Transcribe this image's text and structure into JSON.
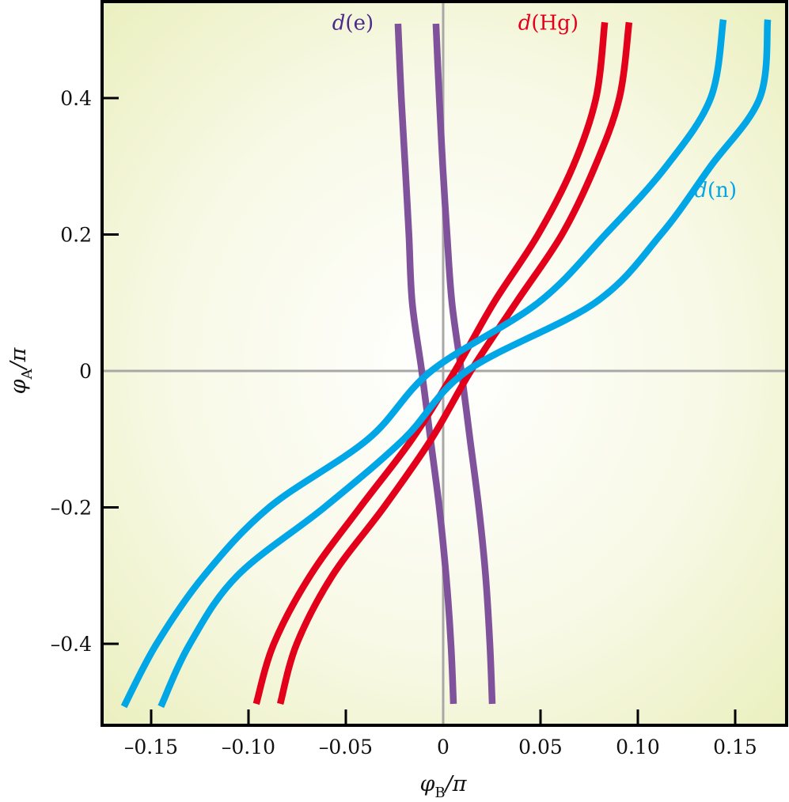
{
  "chart_data": {
    "type": "line",
    "title": "",
    "xlabel": "φ_B/π",
    "ylabel": "φ_A/π",
    "xlim": [
      -0.1715,
      0.1765
    ],
    "ylim": [
      -0.518,
      0.543
    ],
    "x_ticks": [
      -0.15,
      -0.1,
      -0.05,
      0,
      0.05,
      0.1,
      0.15
    ],
    "x_tick_labels": [
      "–0.15",
      "–0.10",
      "–0.05",
      "0",
      "0.05",
      "0.10",
      "0.15"
    ],
    "y_ticks": [
      -0.4,
      -0.2,
      0,
      0.2,
      0.4
    ],
    "y_tick_labels": [
      "–0.4",
      "–0.2",
      "0",
      "0.2",
      "0.4"
    ],
    "grid": false,
    "zero_lines": true,
    "legend": "inline labels",
    "series": [
      {
        "name": "d(e)",
        "label_name": "e",
        "color": "#7f529b",
        "branch": "left",
        "points": [
          [
            -0.0232,
            0.509
          ],
          [
            -0.0215,
            0.4
          ],
          [
            -0.0195,
            0.3
          ],
          [
            -0.0176,
            0.2
          ],
          [
            -0.0159,
            0.1
          ],
          [
            -0.011,
            0.0
          ],
          [
            -0.0065,
            -0.1
          ],
          [
            -0.002,
            -0.2
          ],
          [
            0.0015,
            -0.3
          ],
          [
            0.004,
            -0.4
          ],
          [
            0.0053,
            -0.488
          ]
        ]
      },
      {
        "name": "d(e)",
        "label_name": "e",
        "color": "#7f529b",
        "branch": "right",
        "points": [
          [
            -0.0037,
            0.509
          ],
          [
            -0.002,
            0.4
          ],
          [
            -0.0002,
            0.3
          ],
          [
            0.002,
            0.2
          ],
          [
            0.0045,
            0.1
          ],
          [
            0.0093,
            0.0
          ],
          [
            0.0138,
            -0.1
          ],
          [
            0.0183,
            -0.2
          ],
          [
            0.0218,
            -0.3
          ],
          [
            0.024,
            -0.4
          ],
          [
            0.0252,
            -0.488
          ]
        ]
      },
      {
        "name": "d(Hg)",
        "label_name": "Hg",
        "color": "#e2001a",
        "branch": "left",
        "points": [
          [
            0.083,
            0.511
          ],
          [
            0.0785,
            0.4
          ],
          [
            0.0667,
            0.3
          ],
          [
            0.0488,
            0.2
          ],
          [
            0.026,
            0.1
          ],
          [
            0.006,
            0.0
          ],
          [
            -0.016,
            -0.1
          ],
          [
            -0.0427,
            -0.2
          ],
          [
            -0.0683,
            -0.3
          ],
          [
            -0.087,
            -0.4
          ],
          [
            -0.096,
            -0.488
          ]
        ]
      },
      {
        "name": "d(Hg)",
        "label_name": "Hg",
        "color": "#e2001a",
        "branch": "right",
        "points": [
          [
            0.0955,
            0.511
          ],
          [
            0.0905,
            0.4
          ],
          [
            0.078,
            0.3
          ],
          [
            0.061,
            0.2
          ],
          [
            0.0374,
            0.1
          ],
          [
            0.0142,
            0.0
          ],
          [
            -0.0061,
            -0.1
          ],
          [
            -0.0305,
            -0.2
          ],
          [
            -0.0569,
            -0.3
          ],
          [
            -0.0752,
            -0.4
          ],
          [
            -0.0837,
            -0.488
          ]
        ]
      },
      {
        "name": "d(n)",
        "label_name": "n",
        "color": "#00a6e6",
        "branch": "left",
        "points": [
          [
            0.1439,
            0.515
          ],
          [
            0.1374,
            0.4
          ],
          [
            0.1146,
            0.3
          ],
          [
            0.0833,
            0.2
          ],
          [
            0.0488,
            0.1
          ],
          [
            -0.0061,
            0.0
          ],
          [
            -0.0386,
            -0.1
          ],
          [
            -0.0894,
            -0.2
          ],
          [
            -0.1228,
            -0.3
          ],
          [
            -0.1472,
            -0.4
          ],
          [
            -0.164,
            -0.492
          ]
        ]
      },
      {
        "name": "d(n)",
        "label_name": "n",
        "color": "#00a6e6",
        "branch": "right",
        "points": [
          [
            0.1667,
            0.515
          ],
          [
            0.1626,
            0.4
          ],
          [
            0.1374,
            0.3
          ],
          [
            0.1118,
            0.2
          ],
          [
            0.078,
            0.1
          ],
          [
            0.0122,
            0.0
          ],
          [
            -0.0203,
            -0.1
          ],
          [
            -0.061,
            -0.2
          ],
          [
            -0.1057,
            -0.3
          ],
          [
            -0.1301,
            -0.4
          ],
          [
            -0.145,
            -0.492
          ]
        ]
      }
    ],
    "annotations": [
      {
        "prefix": "d",
        "text": "(e)",
        "color": "#4b2a8c",
        "x": -0.057,
        "y": 0.505
      },
      {
        "prefix": "d",
        "text": "(Hg)",
        "color": "#e2001a",
        "x": 0.0385,
        "y": 0.505
      },
      {
        "prefix": "d",
        "text": "(n)",
        "color": "#00a6e6",
        "x": 0.129,
        "y": 0.26
      }
    ]
  },
  "axes": {
    "x_label_main": "φ",
    "x_label_sub": "B",
    "x_label_tail": "/π",
    "y_label_main": "φ",
    "y_label_sub": "A",
    "y_label_tail": "/π"
  },
  "colors": {
    "background_center": "#ffffff",
    "background_edge": "#eef2c4",
    "frame": "#000000",
    "zero_line": "#a8a8a8"
  }
}
